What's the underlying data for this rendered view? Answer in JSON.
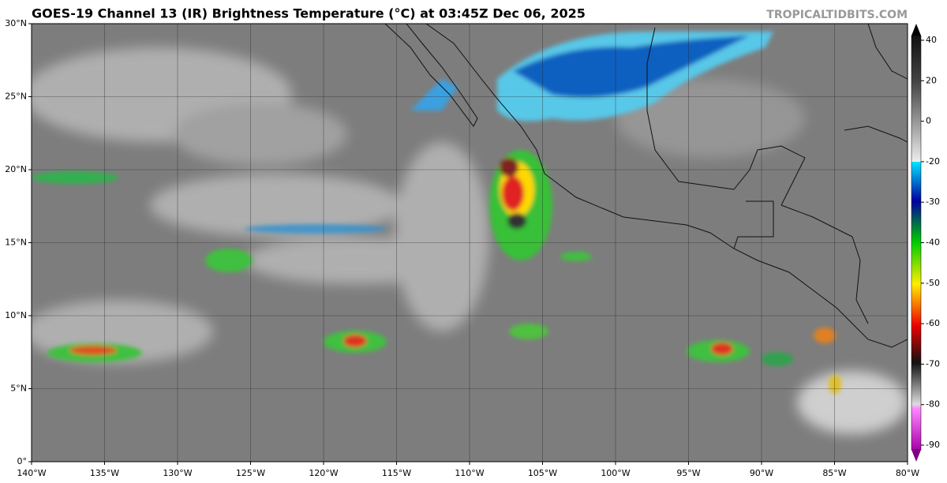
{
  "header": {
    "title": "GOES-19 Channel 13 (IR) Brightness Temperature (°C) at 03:45Z Dec 06, 2025",
    "credit": "TROPICALTIDBITS.COM"
  },
  "map": {
    "xlim": [
      -140,
      -80
    ],
    "ylim": [
      0,
      30
    ],
    "xticks": [
      {
        "value": -140,
        "label": "140°W"
      },
      {
        "value": -135,
        "label": "135°W"
      },
      {
        "value": -130,
        "label": "130°W"
      },
      {
        "value": -125,
        "label": "125°W"
      },
      {
        "value": -120,
        "label": "120°W"
      },
      {
        "value": -115,
        "label": "115°W"
      },
      {
        "value": -110,
        "label": "110°W"
      },
      {
        "value": -105,
        "label": "105°W"
      },
      {
        "value": -100,
        "label": "100°W"
      },
      {
        "value": -95,
        "label": "95°W"
      },
      {
        "value": -90,
        "label": "90°W"
      },
      {
        "value": -85,
        "label": "85°W"
      },
      {
        "value": -80,
        "label": "80°W"
      }
    ],
    "yticks": [
      {
        "value": 0,
        "label": "0°"
      },
      {
        "value": 5,
        "label": "5°N"
      },
      {
        "value": 10,
        "label": "10°N"
      },
      {
        "value": 15,
        "label": "15°N"
      },
      {
        "value": 20,
        "label": "20°N"
      },
      {
        "value": 25,
        "label": "25°N"
      },
      {
        "value": 30,
        "label": "30°N"
      }
    ]
  },
  "colorbar": {
    "ticks": [
      40,
      20,
      0,
      -20,
      -30,
      -40,
      -50,
      -60,
      -70,
      -80,
      -90
    ]
  }
}
